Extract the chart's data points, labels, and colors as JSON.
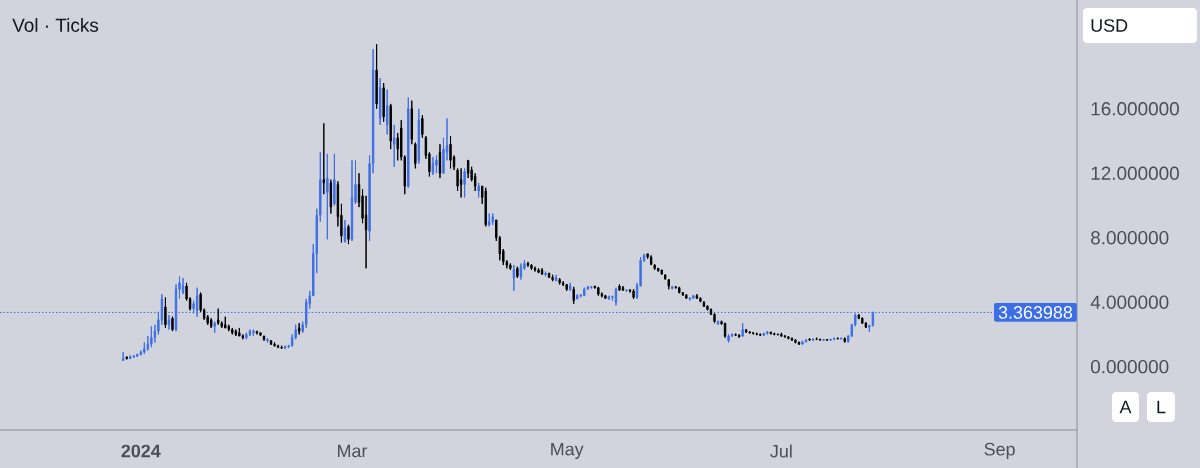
{
  "chart_data": {
    "type": "candlestick",
    "title": "Vol · Ticks",
    "annotations": [
      "USD",
      "A",
      "L"
    ],
    "x": [
      "2023-12-27",
      "2023-12-28",
      "2023-12-29",
      "2023-12-30",
      "2023-12-31",
      "2024-01-01",
      "2024-01-02",
      "2024-01-03",
      "2024-01-04",
      "2024-01-05",
      "2024-01-06",
      "2024-01-07",
      "2024-01-08",
      "2024-01-09",
      "2024-01-10",
      "2024-01-11",
      "2024-01-12",
      "2024-01-13",
      "2024-01-14",
      "2024-01-15",
      "2024-01-16",
      "2024-01-17",
      "2024-01-18",
      "2024-01-19",
      "2024-01-20",
      "2024-01-21",
      "2024-01-22",
      "2024-01-23",
      "2024-01-24",
      "2024-01-25",
      "2024-01-26",
      "2024-01-27",
      "2024-01-28",
      "2024-01-29",
      "2024-01-30",
      "2024-01-31",
      "2024-02-01",
      "2024-02-02",
      "2024-02-03",
      "2024-02-04",
      "2024-02-05",
      "2024-02-06",
      "2024-02-07",
      "2024-02-08",
      "2024-02-09",
      "2024-02-10",
      "2024-02-11",
      "2024-02-12",
      "2024-02-13",
      "2024-02-14",
      "2024-02-15",
      "2024-02-16",
      "2024-02-17",
      "2024-02-18",
      "2024-02-19",
      "2024-02-20",
      "2024-02-21",
      "2024-02-22",
      "2024-02-23",
      "2024-02-24",
      "2024-02-25",
      "2024-02-26",
      "2024-02-27",
      "2024-02-28",
      "2024-02-29",
      "2024-03-01",
      "2024-03-02",
      "2024-03-03",
      "2024-03-04",
      "2024-03-05",
      "2024-03-06",
      "2024-03-07",
      "2024-03-08",
      "2024-03-09",
      "2024-03-10",
      "2024-03-11",
      "2024-03-12",
      "2024-03-13",
      "2024-03-14",
      "2024-03-15",
      "2024-03-16",
      "2024-03-17",
      "2024-03-18",
      "2024-03-19",
      "2024-03-20",
      "2024-03-21",
      "2024-03-22",
      "2024-03-23",
      "2024-03-24",
      "2024-03-25",
      "2024-03-26",
      "2024-03-27",
      "2024-03-28",
      "2024-03-29",
      "2024-03-30",
      "2024-03-31",
      "2024-04-01",
      "2024-04-02",
      "2024-04-03",
      "2024-04-04",
      "2024-04-05",
      "2024-04-06",
      "2024-04-07",
      "2024-04-08",
      "2024-04-09",
      "2024-04-10",
      "2024-04-11",
      "2024-04-12",
      "2024-04-13",
      "2024-04-14",
      "2024-04-15",
      "2024-04-16",
      "2024-04-17",
      "2024-04-18",
      "2024-04-19",
      "2024-04-20",
      "2024-04-21",
      "2024-04-22",
      "2024-04-23",
      "2024-04-24",
      "2024-04-25",
      "2024-04-26",
      "2024-04-27",
      "2024-04-28",
      "2024-04-29",
      "2024-04-30",
      "2024-05-01",
      "2024-05-02",
      "2024-05-03",
      "2024-05-04",
      "2024-05-05",
      "2024-05-06",
      "2024-05-07",
      "2024-05-08",
      "2024-05-09",
      "2024-05-10",
      "2024-05-11",
      "2024-05-12",
      "2024-05-13",
      "2024-05-14",
      "2024-05-15",
      "2024-05-16",
      "2024-05-17",
      "2024-05-18",
      "2024-05-19",
      "2024-05-20",
      "2024-05-21",
      "2024-05-22",
      "2024-05-23",
      "2024-05-24",
      "2024-05-25",
      "2024-05-26",
      "2024-05-27",
      "2024-05-28",
      "2024-05-29",
      "2024-05-30",
      "2024-05-31",
      "2024-06-01",
      "2024-06-02",
      "2024-06-03",
      "2024-06-04",
      "2024-06-05",
      "2024-06-06",
      "2024-06-07",
      "2024-06-08",
      "2024-06-09",
      "2024-06-10",
      "2024-06-11",
      "2024-06-12",
      "2024-06-13",
      "2024-06-14",
      "2024-06-15",
      "2024-06-16",
      "2024-06-17",
      "2024-06-18",
      "2024-06-19",
      "2024-06-20",
      "2024-06-21",
      "2024-06-22",
      "2024-06-23",
      "2024-06-24",
      "2024-06-25",
      "2024-06-26",
      "2024-06-27",
      "2024-06-28",
      "2024-06-29",
      "2024-06-30",
      "2024-07-01",
      "2024-07-02",
      "2024-07-03",
      "2024-07-04",
      "2024-07-05",
      "2024-07-06",
      "2024-07-07",
      "2024-07-08",
      "2024-07-09",
      "2024-07-10",
      "2024-07-11",
      "2024-07-12",
      "2024-07-13",
      "2024-07-14",
      "2024-07-15",
      "2024-07-16",
      "2024-07-17",
      "2024-07-18",
      "2024-07-19",
      "2024-07-20",
      "2024-07-21",
      "2024-07-22",
      "2024-07-23",
      "2024-07-24",
      "2024-07-25",
      "2024-07-26",
      "2024-07-27"
    ],
    "ohlc": [
      [
        0.4,
        0.9,
        0.35,
        0.5
      ],
      [
        0.6,
        0.62,
        0.45,
        0.5
      ],
      [
        0.5,
        0.7,
        0.48,
        0.6
      ],
      [
        0.6,
        0.72,
        0.55,
        0.65
      ],
      [
        0.65,
        0.8,
        0.6,
        0.75
      ],
      [
        0.75,
        1.0,
        0.7,
        0.9
      ],
      [
        0.9,
        1.5,
        0.8,
        1.1
      ],
      [
        1.1,
        1.9,
        1.0,
        1.4
      ],
      [
        1.4,
        2.5,
        1.2,
        1.8
      ],
      [
        1.8,
        2.6,
        1.5,
        2.2
      ],
      [
        2.2,
        3.4,
        2.0,
        2.9
      ],
      [
        2.9,
        4.5,
        2.6,
        4.2
      ],
      [
        3.7,
        4.3,
        2.4,
        2.6
      ],
      [
        2.6,
        3.2,
        2.3,
        2.9
      ],
      [
        3.0,
        3.1,
        2.2,
        2.3
      ],
      [
        2.3,
        5.1,
        2.2,
        4.8
      ],
      [
        4.8,
        5.6,
        4.2,
        5.2
      ],
      [
        4.6,
        5.5,
        4.5,
        5.0
      ],
      [
        5.0,
        5.2,
        4.1,
        4.2
      ],
      [
        4.2,
        4.3,
        3.5,
        3.6
      ],
      [
        3.6,
        4.1,
        3.3,
        3.9
      ],
      [
        3.5,
        4.9,
        3.1,
        4.4
      ],
      [
        4.5,
        4.6,
        3.4,
        3.5
      ],
      [
        3.5,
        3.6,
        2.9,
        3.0
      ],
      [
        3.1,
        3.2,
        2.6,
        2.7
      ],
      [
        2.9,
        3.0,
        2.4,
        2.5
      ],
      [
        2.5,
        2.8,
        2.1,
        2.7
      ],
      [
        2.9,
        3.6,
        2.6,
        2.7
      ],
      [
        2.7,
        2.8,
        2.4,
        2.5
      ],
      [
        2.6,
        3.1,
        2.4,
        2.4
      ],
      [
        2.5,
        2.6,
        2.2,
        2.3
      ],
      [
        2.3,
        2.4,
        2.0,
        2.1
      ],
      [
        2.2,
        2.3,
        1.9,
        2.0
      ],
      [
        2.1,
        2.4,
        1.9,
        1.9
      ],
      [
        1.9,
        2.0,
        1.7,
        1.8
      ],
      [
        1.8,
        2.1,
        1.7,
        2.0
      ],
      [
        2.0,
        2.3,
        1.9,
        2.2
      ],
      [
        2.1,
        2.3,
        1.9,
        2.2
      ],
      [
        2.2,
        2.2,
        2.0,
        2.1
      ],
      [
        2.1,
        2.1,
        1.9,
        1.95
      ],
      [
        1.9,
        1.9,
        1.6,
        1.7
      ],
      [
        1.6,
        1.75,
        1.5,
        1.7
      ],
      [
        1.6,
        1.65,
        1.35,
        1.4
      ],
      [
        1.4,
        1.5,
        1.25,
        1.3
      ],
      [
        1.3,
        1.35,
        1.15,
        1.2
      ],
      [
        1.2,
        1.3,
        1.1,
        1.15
      ],
      [
        1.15,
        1.3,
        1.1,
        1.25
      ],
      [
        1.25,
        1.35,
        1.15,
        1.3
      ],
      [
        1.3,
        2.0,
        1.25,
        1.8
      ],
      [
        1.8,
        2.6,
        1.7,
        2.3
      ],
      [
        2.4,
        2.7,
        2.0,
        2.2
      ],
      [
        2.2,
        2.8,
        2.1,
        2.6
      ],
      [
        2.6,
        4.2,
        2.4,
        4.0
      ],
      [
        3.9,
        4.7,
        3.6,
        4.4
      ],
      [
        4.4,
        7.6,
        4.4,
        7.0
      ],
      [
        7.0,
        9.8,
        5.8,
        9.4
      ],
      [
        9.4,
        13.3,
        9.0,
        11.6
      ],
      [
        11.6,
        15.1,
        10.7,
        11.4
      ],
      [
        10.8,
        13.2,
        7.9,
        11.7
      ],
      [
        11.4,
        11.6,
        9.5,
        9.9
      ],
      [
        10.1,
        13.2,
        10.0,
        11.6
      ],
      [
        11.3,
        11.5,
        8.7,
        9.3
      ],
      [
        9.4,
        10.1,
        7.7,
        8.1
      ],
      [
        7.8,
        9.1,
        7.7,
        8.6
      ],
      [
        8.7,
        8.8,
        7.6,
        7.9
      ],
      [
        7.9,
        12.8,
        7.8,
        10.5
      ],
      [
        10.2,
        12.8,
        10.1,
        11.3
      ],
      [
        11.3,
        12.0,
        9.9,
        10.2
      ],
      [
        10.6,
        11.0,
        8.9,
        9.2
      ],
      [
        9.4,
        10.6,
        6.1,
        8.5
      ],
      [
        8.4,
        13.1,
        7.8,
        12.6
      ],
      [
        12.6,
        19.7,
        12.0,
        18.4
      ],
      [
        18.4,
        20.0,
        16.0,
        16.3
      ],
      [
        15.4,
        17.9,
        15.0,
        17.3
      ],
      [
        17.3,
        17.6,
        15.2,
        15.5
      ],
      [
        15.0,
        17.2,
        14.4,
        16.2
      ],
      [
        16.2,
        16.3,
        13.5,
        14.0
      ],
      [
        13.8,
        15.0,
        12.4,
        14.2
      ],
      [
        14.2,
        14.5,
        12.8,
        13.5
      ],
      [
        14.8,
        15.3,
        12.8,
        13.0
      ],
      [
        13.0,
        13.1,
        10.7,
        11.2
      ],
      [
        11.2,
        16.7,
        11.1,
        16.0
      ],
      [
        16.0,
        16.5,
        13.8,
        14.1
      ],
      [
        13.8,
        13.9,
        12.3,
        12.6
      ],
      [
        12.8,
        16.0,
        12.6,
        15.3
      ],
      [
        15.4,
        15.6,
        14.2,
        14.4
      ],
      [
        14.2,
        14.3,
        12.9,
        13.1
      ],
      [
        13.2,
        13.3,
        11.8,
        12.1
      ],
      [
        12.0,
        13.0,
        11.9,
        12.6
      ],
      [
        12.5,
        13.1,
        12.0,
        12.8
      ],
      [
        13.3,
        13.8,
        11.7,
        12.0
      ],
      [
        12.0,
        14.2,
        12.0,
        13.5
      ],
      [
        13.3,
        15.4,
        12.8,
        13.7
      ],
      [
        13.8,
        14.3,
        12.3,
        12.8
      ],
      [
        13.0,
        13.1,
        12.2,
        12.4
      ],
      [
        12.2,
        12.3,
        10.9,
        11.2
      ],
      [
        11.6,
        12.3,
        10.5,
        11.3
      ],
      [
        11.3,
        12.3,
        10.5,
        12.1
      ],
      [
        12.8,
        12.8,
        11.7,
        12.0
      ],
      [
        12.2,
        12.4,
        11.5,
        11.6
      ],
      [
        11.8,
        12.0,
        10.9,
        11.2
      ],
      [
        10.9,
        11.4,
        10.5,
        11.2
      ],
      [
        11.2,
        11.2,
        10.1,
        10.5
      ],
      [
        10.9,
        11.1,
        8.7,
        8.8
      ],
      [
        8.8,
        9.5,
        8.7,
        9.0
      ],
      [
        9.0,
        9.5,
        8.8,
        9.3
      ],
      [
        9.1,
        9.1,
        7.8,
        8.0
      ],
      [
        8.0,
        8.1,
        6.6,
        7.0
      ],
      [
        7.2,
        7.3,
        6.3,
        6.5
      ],
      [
        6.5,
        6.6,
        6.1,
        6.3
      ],
      [
        6.3,
        6.4,
        6.0,
        6.1
      ],
      [
        5.5,
        6.3,
        4.7,
        6.0
      ],
      [
        6.1,
        6.2,
        5.5,
        5.6
      ],
      [
        5.6,
        6.4,
        5.4,
        6.2
      ],
      [
        6.1,
        6.6,
        6.0,
        6.4
      ],
      [
        6.4,
        6.5,
        6.2,
        6.3
      ],
      [
        6.3,
        6.35,
        6.0,
        6.1
      ],
      [
        6.1,
        6.2,
        5.9,
        6.0
      ],
      [
        6.0,
        6.1,
        5.8,
        5.85
      ],
      [
        6.0,
        6.1,
        5.7,
        5.75
      ],
      [
        5.7,
        5.9,
        5.6,
        5.8
      ],
      [
        5.8,
        5.8,
        5.5,
        5.55
      ],
      [
        5.55,
        5.7,
        5.3,
        5.4
      ],
      [
        5.35,
        5.7,
        5.3,
        5.5
      ],
      [
        5.4,
        5.5,
        5.1,
        5.2
      ],
      [
        5.2,
        5.3,
        5.0,
        5.1
      ],
      [
        5.1,
        5.1,
        4.7,
        4.8
      ],
      [
        4.8,
        5.2,
        4.7,
        5.0
      ],
      [
        4.8,
        4.95,
        3.9,
        4.1
      ],
      [
        4.2,
        4.5,
        4.2,
        4.4
      ],
      [
        4.4,
        4.5,
        4.3,
        4.45
      ],
      [
        4.4,
        4.9,
        4.4,
        4.8
      ],
      [
        4.8,
        5.0,
        4.8,
        4.95
      ],
      [
        4.9,
        5.0,
        4.85,
        4.95
      ],
      [
        5.0,
        5.0,
        4.85,
        4.9
      ],
      [
        4.9,
        4.95,
        4.4,
        4.5
      ],
      [
        4.5,
        4.6,
        4.3,
        4.4
      ],
      [
        4.4,
        4.45,
        4.2,
        4.25
      ],
      [
        4.2,
        4.4,
        4.15,
        4.35
      ],
      [
        4.3,
        4.4,
        4.1,
        4.35
      ],
      [
        4.0,
        4.9,
        3.8,
        4.8
      ],
      [
        5.0,
        5.1,
        4.7,
        4.75
      ],
      [
        4.9,
        5.0,
        4.7,
        4.75
      ],
      [
        4.7,
        4.8,
        4.65,
        4.75
      ],
      [
        4.75,
        4.8,
        4.6,
        4.7
      ],
      [
        4.7,
        4.8,
        4.2,
        4.3
      ],
      [
        4.3,
        5.2,
        4.2,
        5.0
      ],
      [
        5.0,
        6.8,
        5.0,
        6.6
      ],
      [
        6.6,
        7.0,
        6.5,
        6.9
      ],
      [
        7.0,
        7.0,
        6.7,
        6.8
      ],
      [
        6.8,
        6.9,
        6.3,
        6.35
      ],
      [
        6.3,
        6.35,
        6.0,
        6.1
      ],
      [
        6.1,
        6.1,
        5.9,
        5.95
      ],
      [
        6.0,
        6.0,
        5.7,
        5.75
      ],
      [
        5.7,
        5.7,
        5.4,
        5.45
      ],
      [
        5.4,
        5.4,
        4.8,
        5.0
      ],
      [
        4.85,
        5.0,
        4.8,
        4.95
      ],
      [
        4.95,
        5.0,
        4.85,
        4.9
      ],
      [
        4.9,
        4.95,
        4.55,
        4.6
      ],
      [
        4.6,
        4.6,
        4.4,
        4.45
      ],
      [
        4.45,
        4.5,
        4.2,
        4.25
      ],
      [
        4.2,
        4.3,
        4.1,
        4.25
      ],
      [
        4.25,
        4.45,
        4.2,
        4.4
      ],
      [
        4.4,
        4.5,
        4.2,
        4.25
      ],
      [
        4.25,
        4.3,
        4.0,
        4.05
      ],
      [
        4.0,
        4.05,
        3.7,
        3.75
      ],
      [
        3.75,
        3.8,
        3.5,
        3.55
      ],
      [
        3.55,
        3.6,
        3.2,
        3.25
      ],
      [
        3.25,
        3.3,
        2.7,
        2.8
      ],
      [
        2.65,
        2.85,
        2.6,
        2.8
      ],
      [
        2.8,
        2.85,
        2.6,
        2.65
      ],
      [
        2.7,
        2.7,
        1.8,
        1.9
      ],
      [
        1.6,
        2.0,
        1.5,
        1.9
      ],
      [
        1.9,
        2.05,
        1.85,
        2.0
      ],
      [
        2.0,
        2.05,
        1.9,
        1.95
      ],
      [
        1.95,
        2.0,
        1.8,
        1.85
      ],
      [
        1.9,
        2.7,
        1.85,
        2.3
      ],
      [
        2.3,
        2.3,
        2.1,
        2.15
      ],
      [
        2.15,
        2.2,
        2.05,
        2.1
      ],
      [
        2.1,
        2.15,
        2.0,
        2.05
      ],
      [
        2.05,
        2.1,
        1.95,
        2.0
      ],
      [
        2.0,
        2.05,
        1.9,
        1.95
      ],
      [
        1.95,
        2.1,
        1.9,
        2.05
      ],
      [
        2.05,
        2.2,
        2.0,
        2.15
      ],
      [
        2.15,
        2.15,
        2.0,
        2.05
      ],
      [
        2.05,
        2.1,
        1.95,
        2.0
      ],
      [
        2.0,
        2.05,
        1.95,
        1.98
      ],
      [
        2.0,
        2.1,
        1.85,
        1.9
      ],
      [
        1.9,
        1.95,
        1.8,
        1.85
      ],
      [
        1.85,
        1.9,
        1.7,
        1.75
      ],
      [
        1.75,
        1.8,
        1.6,
        1.65
      ],
      [
        1.65,
        1.7,
        1.45,
        1.5
      ],
      [
        1.5,
        1.55,
        1.35,
        1.4
      ],
      [
        1.4,
        1.6,
        1.35,
        1.55
      ],
      [
        1.55,
        1.7,
        1.5,
        1.65
      ],
      [
        1.7,
        1.75,
        1.6,
        1.65
      ],
      [
        1.65,
        1.75,
        1.6,
        1.7
      ],
      [
        1.72,
        1.8,
        1.65,
        1.7
      ],
      [
        1.7,
        1.72,
        1.62,
        1.65
      ],
      [
        1.63,
        1.72,
        1.6,
        1.68
      ],
      [
        1.68,
        1.7,
        1.6,
        1.65
      ],
      [
        1.65,
        1.72,
        1.6,
        1.7
      ],
      [
        1.7,
        1.8,
        1.65,
        1.75
      ],
      [
        1.75,
        1.8,
        1.7,
        1.72
      ],
      [
        1.72,
        1.8,
        1.68,
        1.76
      ],
      [
        1.75,
        1.8,
        1.5,
        1.55
      ],
      [
        1.55,
        1.95,
        1.5,
        1.9
      ],
      [
        1.9,
        2.65,
        1.85,
        2.6
      ],
      [
        2.6,
        3.3,
        2.5,
        3.2
      ],
      [
        3.2,
        3.25,
        2.95,
        3.0
      ],
      [
        3.0,
        3.05,
        2.65,
        2.7
      ],
      [
        2.7,
        2.75,
        2.4,
        2.45
      ],
      [
        2.45,
        2.6,
        2.15,
        2.55
      ],
      [
        2.55,
        3.4,
        2.5,
        3.363988
      ]
    ],
    "colors": [
      "#3d6ee6",
      "#000000",
      "#3d6ee6",
      "#3d6ee6",
      "#3d6ee6",
      "#3d6ee6",
      "#3d6ee6",
      "#3d6ee6",
      "#3d6ee6",
      "#3d6ee6",
      "#3d6ee6",
      "#3d6ee6",
      "#000000",
      "#3d6ee6",
      "#000000",
      "#3d6ee6",
      "#3d6ee6",
      "#3d6ee6",
      "#000000",
      "#000000",
      "#3d6ee6",
      "#3d6ee6",
      "#000000",
      "#000000",
      "#000000",
      "#000000",
      "#3d6ee6",
      "#000000",
      "#000000",
      "#000000",
      "#000000",
      "#000000",
      "#000000",
      "#000000",
      "#000000",
      "#3d6ee6",
      "#3d6ee6",
      "#3d6ee6",
      "#000000",
      "#000000",
      "#000000",
      "#3d6ee6",
      "#000000",
      "#000000",
      "#000000",
      "#000000",
      "#3d6ee6",
      "#3d6ee6",
      "#3d6ee6",
      "#3d6ee6",
      "#000000",
      "#3d6ee6",
      "#3d6ee6",
      "#3d6ee6",
      "#3d6ee6",
      "#3d6ee6",
      "#3d6ee6",
      "#000000",
      "#3d6ee6",
      "#000000",
      "#3d6ee6",
      "#000000",
      "#000000",
      "#3d6ee6",
      "#000000",
      "#3d6ee6",
      "#3d6ee6",
      "#000000",
      "#000000",
      "#000000",
      "#3d6ee6",
      "#3d6ee6",
      "#000000",
      "#3d6ee6",
      "#000000",
      "#3d6ee6",
      "#000000",
      "#3d6ee6",
      "#000000",
      "#000000",
      "#000000",
      "#3d6ee6",
      "#000000",
      "#000000",
      "#3d6ee6",
      "#000000",
      "#000000",
      "#000000",
      "#3d6ee6",
      "#3d6ee6",
      "#000000",
      "#3d6ee6",
      "#3d6ee6",
      "#000000",
      "#000000",
      "#000000",
      "#000000",
      "#3d6ee6",
      "#000000",
      "#000000",
      "#000000",
      "#3d6ee6",
      "#000000",
      "#000000",
      "#3d6ee6",
      "#3d6ee6",
      "#000000",
      "#000000",
      "#000000",
      "#000000",
      "#000000",
      "#3d6ee6",
      "#000000",
      "#3d6ee6",
      "#3d6ee6",
      "#000000",
      "#000000",
      "#000000",
      "#000000",
      "#000000",
      "#3d6ee6",
      "#000000",
      "#000000",
      "#3d6ee6",
      "#000000",
      "#000000",
      "#000000",
      "#3d6ee6",
      "#000000",
      "#3d6ee6",
      "#3d6ee6",
      "#3d6ee6",
      "#3d6ee6",
      "#3d6ee6",
      "#000000",
      "#000000",
      "#000000",
      "#000000",
      "#3d6ee6",
      "#3d6ee6",
      "#3d6ee6",
      "#000000",
      "#000000",
      "#3d6ee6",
      "#000000",
      "#000000",
      "#3d6ee6",
      "#3d6ee6",
      "#3d6ee6",
      "#000000",
      "#000000",
      "#000000",
      "#000000",
      "#000000",
      "#000000",
      "#000000",
      "#3d6ee6",
      "#000000",
      "#000000",
      "#000000",
      "#000000",
      "#3d6ee6",
      "#3d6ee6",
      "#000000",
      "#000000",
      "#000000",
      "#000000",
      "#000000",
      "#000000",
      "#3d6ee6",
      "#000000",
      "#000000",
      "#3d6ee6",
      "#3d6ee6",
      "#000000",
      "#000000",
      "#3d6ee6",
      "#000000",
      "#000000",
      "#000000",
      "#000000",
      "#000000",
      "#3d6ee6",
      "#3d6ee6",
      "#000000",
      "#000000",
      "#000000",
      "#000000",
      "#000000",
      "#000000",
      "#000000",
      "#000000",
      "#000000",
      "#3d6ee6",
      "#3d6ee6",
      "#000000",
      "#3d6ee6",
      "#000000",
      "#000000",
      "#3d6ee6",
      "#000000",
      "#3d6ee6",
      "#3d6ee6",
      "#000000",
      "#3d6ee6",
      "#000000",
      "#3d6ee6",
      "#3d6ee6",
      "#3d6ee6",
      "#000000",
      "#000000",
      "#000000",
      "#3d6ee6",
      "#3d6ee6"
    ],
    "xlim": [
      "2023-11-22",
      "2024-09-23"
    ],
    "xticks": [
      {
        "value": "2024-01-01",
        "label": "2024"
      },
      {
        "value": "2024-03-01",
        "label": "Mar"
      },
      {
        "value": "2024-05-01",
        "label": "May"
      },
      {
        "value": "2024-07-01",
        "label": "Jul"
      },
      {
        "value": "2024-09-01",
        "label": "Sep"
      }
    ],
    "ylim": [
      -3.93,
      22.75
    ],
    "yticks": [
      {
        "value": 0,
        "label": "0.000000"
      },
      {
        "value": 4,
        "label": "4.000000"
      },
      {
        "value": 8,
        "label": "8.000000"
      },
      {
        "value": 12,
        "label": "12.000000"
      },
      {
        "value": 16,
        "label": "16.000000"
      }
    ],
    "ref_lines": [
      {
        "axis": "y",
        "value": 3.363988,
        "label": "3.363988",
        "color": "#3d6ee6",
        "line_style": "dotted"
      }
    ]
  }
}
